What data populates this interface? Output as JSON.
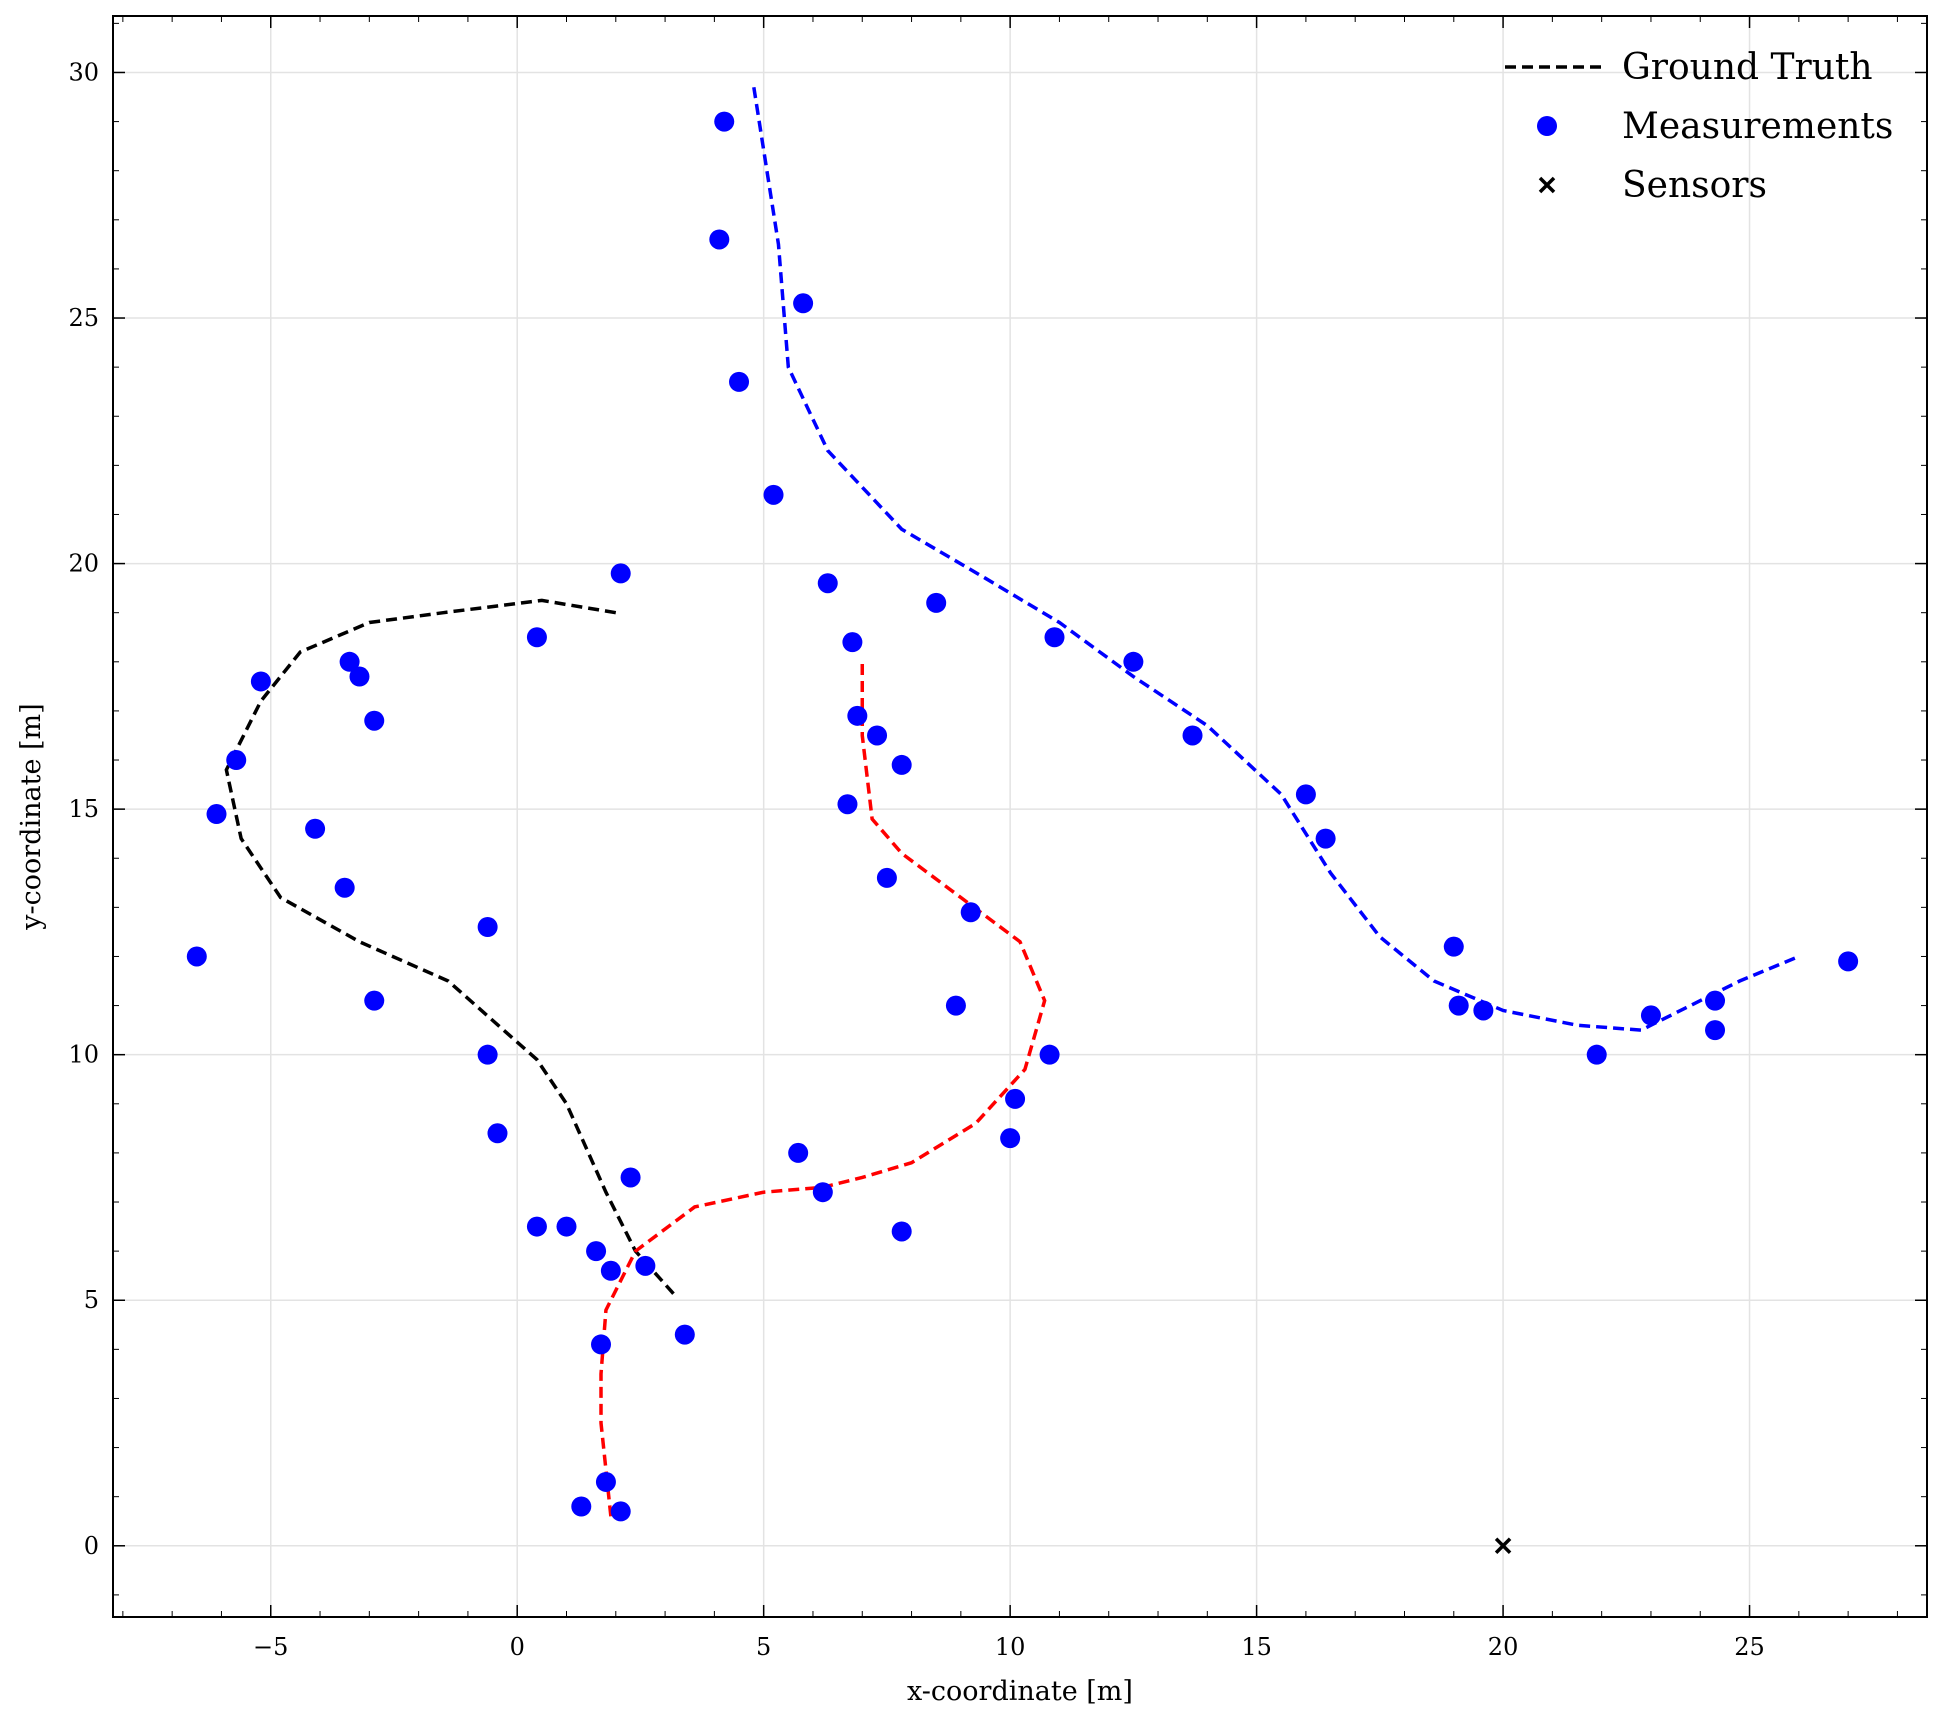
{
  "chart_data": {
    "type": "scatter",
    "xlabel": "x-coordinate [m]",
    "ylabel": "y-coordinate [m]",
    "xlim": [
      -8.2,
      28.6
    ],
    "ylim": [
      -1.45,
      31.15
    ],
    "xticks": [
      -5,
      0,
      5,
      10,
      15,
      20,
      25
    ],
    "xtick_labels": [
      "−5",
      "0",
      "5",
      "10",
      "15",
      "20",
      "25"
    ],
    "yticks": [
      0,
      5,
      10,
      15,
      20,
      25,
      30
    ],
    "ytick_labels": [
      "0",
      "5",
      "10",
      "15",
      "20",
      "25",
      "30"
    ],
    "grid": true,
    "legend_position": "top-right",
    "legend": [
      {
        "label": "Ground Truth",
        "marker": "dashed-line",
        "color": "#000000"
      },
      {
        "label": "Measurements",
        "marker": "dot",
        "color": "#0000ff"
      },
      {
        "label": "Sensors",
        "marker": "x",
        "color": "#000000"
      }
    ],
    "ground_truth": [
      {
        "color": "#000000",
        "points": [
          [
            2.0,
            19.0
          ],
          [
            0.5,
            19.25
          ],
          [
            -1.5,
            19.0
          ],
          [
            -3.0,
            18.8
          ],
          [
            -4.4,
            18.2
          ],
          [
            -5.2,
            17.2
          ],
          [
            -5.9,
            15.8
          ],
          [
            -5.6,
            14.4
          ],
          [
            -4.8,
            13.2
          ],
          [
            -3.2,
            12.3
          ],
          [
            -1.4,
            11.5
          ],
          [
            0.4,
            9.9
          ],
          [
            1.0,
            9.0
          ],
          [
            1.8,
            7.2
          ],
          [
            2.4,
            6.0
          ],
          [
            3.2,
            5.1
          ]
        ]
      },
      {
        "color": "#ff0000",
        "points": [
          [
            1.9,
            0.6
          ],
          [
            1.7,
            2.5
          ],
          [
            1.7,
            3.5
          ],
          [
            1.8,
            4.8
          ],
          [
            2.4,
            6.0
          ],
          [
            3.6,
            6.9
          ],
          [
            5.0,
            7.2
          ],
          [
            6.2,
            7.3
          ],
          [
            7.0,
            7.5
          ],
          [
            8.0,
            7.8
          ],
          [
            9.3,
            8.6
          ],
          [
            10.3,
            9.7
          ],
          [
            10.7,
            11.1
          ],
          [
            10.2,
            12.3
          ],
          [
            9.0,
            13.2
          ],
          [
            7.8,
            14.1
          ],
          [
            7.2,
            14.8
          ],
          [
            7.0,
            16.5
          ],
          [
            7.0,
            18.0
          ]
        ]
      },
      {
        "color": "#0000ff",
        "points": [
          [
            4.8,
            29.7
          ],
          [
            5.3,
            26.5
          ],
          [
            5.5,
            24.0
          ],
          [
            6.3,
            22.3
          ],
          [
            7.8,
            20.7
          ],
          [
            9.5,
            19.7
          ],
          [
            11.0,
            18.8
          ],
          [
            12.5,
            17.7
          ],
          [
            14.0,
            16.7
          ],
          [
            15.5,
            15.3
          ],
          [
            16.5,
            13.7
          ],
          [
            17.5,
            12.4
          ],
          [
            18.6,
            11.5
          ],
          [
            20.0,
            10.9
          ],
          [
            21.5,
            10.6
          ],
          [
            22.8,
            10.5
          ],
          [
            24.8,
            11.5
          ],
          [
            26.0,
            12.0
          ]
        ]
      }
    ],
    "measurements": [
      [
        4.2,
        29.0
      ],
      [
        4.1,
        26.6
      ],
      [
        5.8,
        25.3
      ],
      [
        4.5,
        23.7
      ],
      [
        5.2,
        21.4
      ],
      [
        6.3,
        19.6
      ],
      [
        8.5,
        19.2
      ],
      [
        6.8,
        18.4
      ],
      [
        10.9,
        18.5
      ],
      [
        12.5,
        18.0
      ],
      [
        13.7,
        16.5
      ],
      [
        6.9,
        16.9
      ],
      [
        7.3,
        16.5
      ],
      [
        7.8,
        15.9
      ],
      [
        6.7,
        15.1
      ],
      [
        16.0,
        15.3
      ],
      [
        16.4,
        14.4
      ],
      [
        7.5,
        13.6
      ],
      [
        9.2,
        12.9
      ],
      [
        19.0,
        12.2
      ],
      [
        8.9,
        11.0
      ],
      [
        19.1,
        11.0
      ],
      [
        19.6,
        10.9
      ],
      [
        10.8,
        10.0
      ],
      [
        10.1,
        9.1
      ],
      [
        10.0,
        8.3
      ],
      [
        21.9,
        10.0
      ],
      [
        23.0,
        10.8
      ],
      [
        24.3,
        11.1
      ],
      [
        24.3,
        10.5
      ],
      [
        27.0,
        11.9
      ],
      [
        2.1,
        19.8
      ],
      [
        0.4,
        18.5
      ],
      [
        -3.4,
        18.0
      ],
      [
        -3.2,
        17.7
      ],
      [
        -2.9,
        16.8
      ],
      [
        -5.2,
        17.6
      ],
      [
        -5.7,
        16.0
      ],
      [
        -6.1,
        14.9
      ],
      [
        -4.1,
        14.6
      ],
      [
        -3.5,
        13.4
      ],
      [
        -0.6,
        12.6
      ],
      [
        -6.5,
        12.0
      ],
      [
        -2.9,
        11.1
      ],
      [
        -0.6,
        10.0
      ],
      [
        -0.4,
        8.4
      ],
      [
        2.3,
        7.5
      ],
      [
        5.7,
        8.0
      ],
      [
        6.2,
        7.2
      ],
      [
        7.8,
        6.4
      ],
      [
        0.4,
        6.5
      ],
      [
        1.0,
        6.5
      ],
      [
        1.6,
        6.0
      ],
      [
        1.9,
        5.6
      ],
      [
        2.6,
        5.7
      ],
      [
        1.7,
        4.1
      ],
      [
        3.4,
        4.3
      ],
      [
        1.8,
        1.3
      ],
      [
        1.3,
        0.8
      ],
      [
        2.1,
        0.7
      ]
    ],
    "sensors": [
      [
        20.0,
        0.0
      ]
    ]
  }
}
